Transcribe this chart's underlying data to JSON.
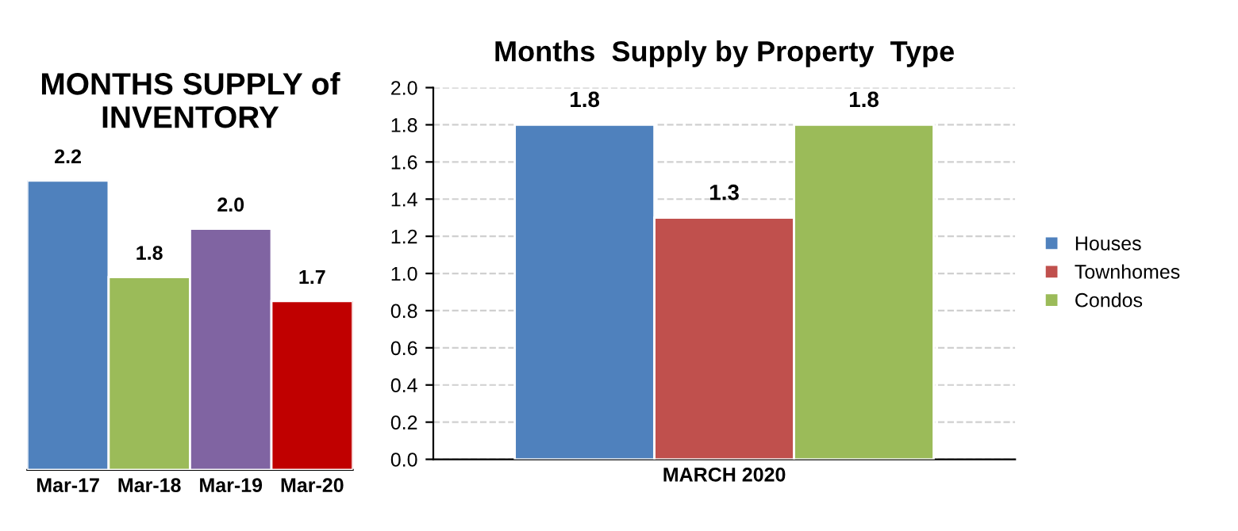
{
  "chart_data": [
    {
      "type": "bar",
      "title": "MONTHS SUPPLY of\nINVENTORY",
      "categories": [
        "Mar-17",
        "Mar-18",
        "Mar-19",
        "Mar-20"
      ],
      "values": [
        2.2,
        1.8,
        2.0,
        1.7
      ],
      "colors": [
        "#4f81bd",
        "#9bbb59",
        "#8064a2",
        "#c00000"
      ],
      "value_labels": [
        "2.2",
        "1.8",
        "2.0",
        "1.7"
      ],
      "ylim": [
        1.0,
        2.2
      ],
      "tick_labels": "x"
    },
    {
      "type": "bar",
      "title": "Months  Supply by Property  Type",
      "categories": [
        "MARCH 2020"
      ],
      "series": [
        {
          "name": "Houses",
          "color": "#4f81bd",
          "values": [
            1.8
          ]
        },
        {
          "name": "Townhomes",
          "color": "#c0504d",
          "values": [
            1.3
          ]
        },
        {
          "name": "Condos",
          "color": "#9bbb59",
          "values": [
            1.8
          ]
        }
      ],
      "data_labels": true,
      "ylim": [
        0,
        2.0
      ],
      "yticks": [
        {
          "value": 0,
          "label": "0.0"
        },
        {
          "value": 0.2,
          "label": "0.2"
        },
        {
          "value": 0.4,
          "label": "0.4"
        },
        {
          "value": 0.6,
          "label": "0.6"
        },
        {
          "value": 0.8,
          "label": "0.8"
        },
        {
          "value": 1.0,
          "label": "1.0"
        },
        {
          "value": 1.2,
          "label": "1.2"
        },
        {
          "value": 1.4,
          "label": "1.4"
        },
        {
          "value": 1.6,
          "label": "1.6"
        },
        {
          "value": 1.8,
          "label": "1.8"
        },
        {
          "value": 2.0,
          "label": "2.0"
        }
      ],
      "grid": "y",
      "legend": "right"
    }
  ]
}
